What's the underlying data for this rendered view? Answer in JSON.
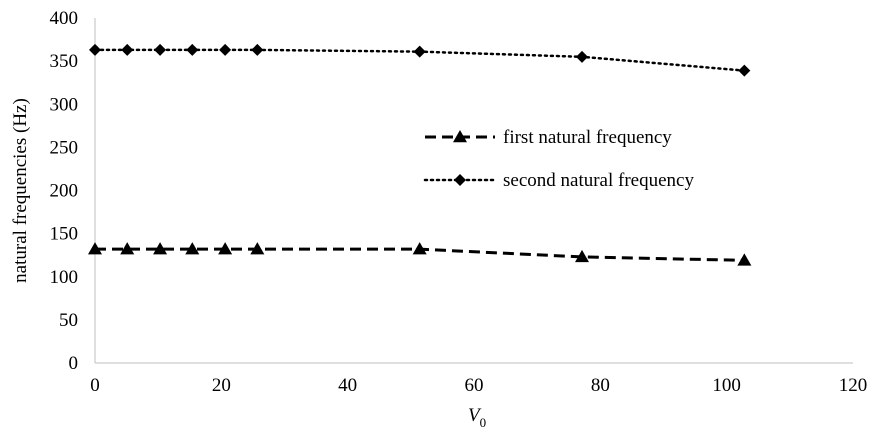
{
  "chart_data": {
    "type": "line",
    "title": "",
    "xlabel": "V",
    "xlabel_subscript": "0",
    "ylabel": "natural frequencies (Hz)",
    "xlim": [
      0,
      120
    ],
    "ylim": [
      0,
      400
    ],
    "x_ticks": [
      0,
      20,
      40,
      60,
      80,
      100,
      120
    ],
    "y_ticks": [
      0,
      50,
      100,
      150,
      200,
      250,
      300,
      350,
      400
    ],
    "grid": false,
    "legend_position": "right",
    "x": [
      0,
      5.1,
      10.3,
      15.4,
      20.6,
      25.7,
      51.4,
      77.1,
      102.8
    ],
    "series": [
      {
        "name": "first natural frequency",
        "values": [
          132,
          132,
          132,
          132,
          132,
          132,
          132,
          123,
          119
        ],
        "line_style": "dashed",
        "marker": "triangle",
        "color": "#000000"
      },
      {
        "name": "second natural frequency",
        "values": [
          363,
          363,
          363,
          363,
          363,
          363,
          361,
          355,
          339
        ],
        "line_style": "dotted",
        "marker": "diamond",
        "color": "#000000"
      }
    ]
  }
}
